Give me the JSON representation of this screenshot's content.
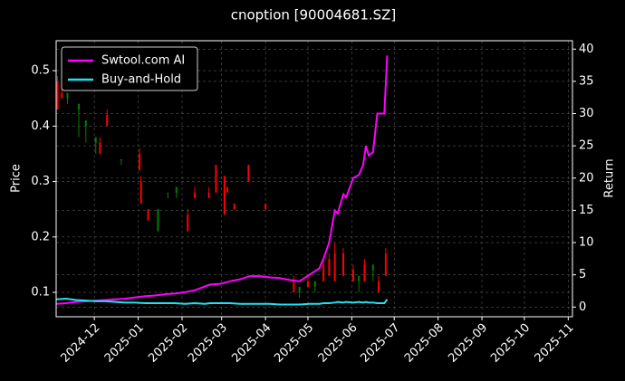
{
  "chart_data": {
    "type": "candlestick",
    "title": "cnoption [90004681.SZ]",
    "ylabel": "Price",
    "y2label": "Return",
    "grid": true,
    "legend": "upper left",
    "up_color": "#008000",
    "down_color": "#ff0000",
    "xlim": [
      "2024-11-04",
      "2025-11-04"
    ],
    "xticks": [
      {
        "value": "2024-12-01",
        "label": "2024-12"
      },
      {
        "value": "2025-01-01",
        "label": "2025-01"
      },
      {
        "value": "2025-02-01",
        "label": "2025-02"
      },
      {
        "value": "2025-03-01",
        "label": "2025-03"
      },
      {
        "value": "2025-04-01",
        "label": "2025-04"
      },
      {
        "value": "2025-05-01",
        "label": "2025-05"
      },
      {
        "value": "2025-06-01",
        "label": "2025-06"
      },
      {
        "value": "2025-07-01",
        "label": "2025-07"
      },
      {
        "value": "2025-08-01",
        "label": "2025-08"
      },
      {
        "value": "2025-09-01",
        "label": "2025-09"
      },
      {
        "value": "2025-10-01",
        "label": "2025-10"
      },
      {
        "value": "2025-11-01",
        "label": "2025-11"
      }
    ],
    "ylim": [
      0.056,
      0.554
    ],
    "yticks": [
      0.1,
      0.2,
      0.3,
      0.4,
      0.5
    ],
    "y2lim": [
      -1.5,
      41.3
    ],
    "y2ticks": [
      0,
      5,
      10,
      15,
      20,
      25,
      30,
      35,
      40
    ],
    "candles": {
      "x": [
        "2024-11-05",
        "2024-11-08",
        "2024-11-12",
        "2024-11-20",
        "2024-11-25",
        "2024-12-02",
        "2024-12-05",
        "2024-12-10",
        "2024-12-20",
        "2025-01-02",
        "2025-01-03",
        "2025-01-08",
        "2025-01-15",
        "2025-01-22",
        "2025-01-28",
        "2025-02-05",
        "2025-02-10",
        "2025-02-20",
        "2025-02-25",
        "2025-03-03",
        "2025-03-05",
        "2025-03-10",
        "2025-03-20",
        "2025-04-01",
        "2025-04-21",
        "2025-04-25",
        "2025-05-01",
        "2025-05-06",
        "2025-05-12",
        "2025-05-16",
        "2025-05-20",
        "2025-05-26",
        "2025-06-02",
        "2025-06-06",
        "2025-06-10",
        "2025-06-16",
        "2025-06-20",
        "2025-06-25"
      ],
      "open": [
        0.48,
        0.46,
        0.45,
        0.43,
        0.4,
        0.37,
        0.37,
        0.42,
        0.34,
        0.35,
        0.3,
        0.25,
        0.21,
        0.28,
        0.28,
        0.24,
        0.28,
        0.28,
        0.33,
        0.31,
        0.29,
        0.26,
        0.33,
        0.26,
        0.12,
        0.1,
        0.12,
        0.11,
        0.15,
        0.16,
        0.17,
        0.17,
        0.14,
        0.12,
        0.15,
        0.14,
        0.12,
        0.17
      ],
      "high": [
        0.49,
        0.47,
        0.46,
        0.44,
        0.41,
        0.38,
        0.38,
        0.43,
        0.34,
        0.36,
        0.31,
        0.25,
        0.25,
        0.28,
        0.29,
        0.25,
        0.29,
        0.29,
        0.33,
        0.31,
        0.29,
        0.26,
        0.33,
        0.26,
        0.13,
        0.11,
        0.13,
        0.12,
        0.16,
        0.17,
        0.19,
        0.18,
        0.15,
        0.13,
        0.16,
        0.15,
        0.13,
        0.18
      ],
      "low": [
        0.43,
        0.45,
        0.44,
        0.38,
        0.37,
        0.35,
        0.35,
        0.4,
        0.33,
        0.32,
        0.26,
        0.23,
        0.21,
        0.27,
        0.27,
        0.21,
        0.27,
        0.27,
        0.28,
        0.24,
        0.28,
        0.25,
        0.3,
        0.25,
        0.1,
        0.09,
        0.11,
        0.1,
        0.12,
        0.13,
        0.12,
        0.13,
        0.12,
        0.1,
        0.12,
        0.12,
        0.1,
        0.13
      ],
      "close": [
        0.43,
        0.45,
        0.46,
        0.44,
        0.41,
        0.38,
        0.35,
        0.4,
        0.34,
        0.32,
        0.26,
        0.23,
        0.25,
        0.28,
        0.29,
        0.21,
        0.27,
        0.27,
        0.28,
        0.24,
        0.28,
        0.25,
        0.3,
        0.25,
        0.1,
        0.11,
        0.11,
        0.12,
        0.12,
        0.13,
        0.12,
        0.13,
        0.12,
        0.13,
        0.12,
        0.15,
        0.1,
        0.13
      ]
    },
    "x": [
      "2024-11-04",
      "2024-11-11",
      "2024-11-18",
      "2024-11-25",
      "2024-12-02",
      "2024-12-09",
      "2024-12-16",
      "2024-12-23",
      "2024-12-30",
      "2025-01-06",
      "2025-01-13",
      "2025-01-20",
      "2025-01-27",
      "2025-02-03",
      "2025-02-10",
      "2025-02-17",
      "2025-02-21",
      "2025-02-28",
      "2025-03-07",
      "2025-03-14",
      "2025-03-21",
      "2025-03-28",
      "2025-04-04",
      "2025-04-11",
      "2025-04-18",
      "2025-04-25",
      "2025-05-02",
      "2025-05-09",
      "2025-05-12",
      "2025-05-16",
      "2025-05-20",
      "2025-05-22",
      "2025-05-26",
      "2025-05-28",
      "2025-06-02",
      "2025-06-06",
      "2025-06-09",
      "2025-06-11",
      "2025-06-13",
      "2025-06-16",
      "2025-06-19",
      "2025-06-24",
      "2025-06-26"
    ],
    "series": [
      {
        "name": "Swtool.com AI",
        "color": "#ff00ff",
        "axis": "y2",
        "values": [
          0.5,
          0.6,
          0.8,
          0.9,
          1.0,
          1.1,
          1.2,
          1.3,
          1.5,
          1.7,
          1.8,
          2.0,
          2.1,
          2.3,
          2.6,
          3.2,
          3.5,
          3.6,
          4.0,
          4.3,
          4.8,
          4.8,
          4.6,
          4.5,
          4.2,
          4.0,
          5.0,
          6.0,
          7.5,
          10.0,
          15.0,
          14.5,
          17.5,
          17.0,
          20.0,
          20.5,
          22.0,
          25.0,
          23.5,
          24.0,
          30.0,
          30.0,
          39.0
        ]
      },
      {
        "name": "Buy-and-Hold",
        "color": "#22e0ee",
        "axis": "y2",
        "values": [
          1.2,
          1.3,
          1.1,
          1.0,
          0.9,
          0.9,
          0.8,
          0.7,
          0.7,
          0.6,
          0.6,
          0.6,
          0.6,
          0.5,
          0.6,
          0.5,
          0.6,
          0.6,
          0.6,
          0.5,
          0.5,
          0.5,
          0.5,
          0.4,
          0.4,
          0.4,
          0.5,
          0.5,
          0.6,
          0.6,
          0.7,
          0.8,
          0.7,
          0.8,
          0.7,
          0.8,
          0.7,
          0.8,
          0.7,
          0.7,
          0.6,
          0.6,
          1.2
        ]
      }
    ]
  }
}
